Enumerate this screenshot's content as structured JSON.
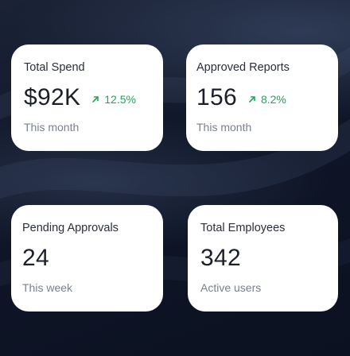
{
  "stats": [
    {
      "label": "Total Spend",
      "value": "$92K",
      "trend": "12.5%",
      "trend_color": "#22a55a",
      "sub": "This month"
    },
    {
      "label": "Approved Reports",
      "value": "156",
      "trend": "8.2%",
      "trend_color": "#22a55a",
      "sub": "This month"
    },
    {
      "label": "Pending Approvals",
      "value": "24",
      "sub": "This week"
    },
    {
      "label": "Total Employees",
      "value": "342",
      "sub": "Active users"
    }
  ],
  "icons": {
    "trend_up": "arrow-up-right-icon"
  }
}
